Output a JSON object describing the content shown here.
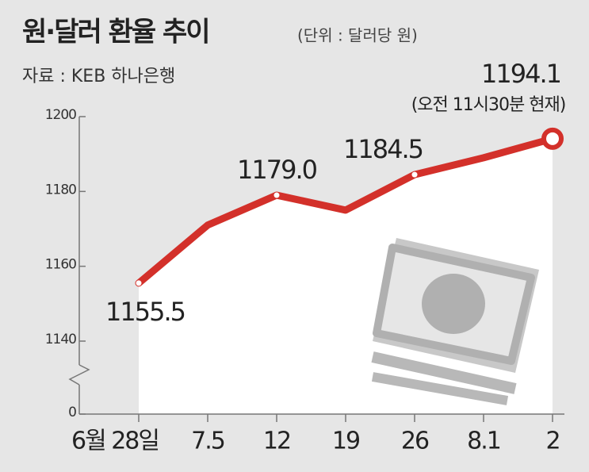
{
  "chart_data": {
    "type": "line",
    "title": "원·달러 환율 추이",
    "subtitle": "(단위 : 달러당 원)",
    "source": "자료 : KEB 하나은행",
    "annotation": "(오전 11시30분 현재)",
    "categories": [
      "6월 28일",
      "7.5",
      "12",
      "19",
      "26",
      "8.1",
      "2"
    ],
    "values": [
      1155.5,
      1171,
      1179.0,
      1175,
      1184.5,
      1189,
      1194.1
    ],
    "value_labels": [
      "1155.5",
      null,
      "1179.0",
      null,
      "1184.5",
      null,
      "1194.1"
    ],
    "color": "#d3302a",
    "ylim": [
      1140,
      1200
    ],
    "yticks": [
      0,
      1140,
      1160,
      1180,
      1200
    ],
    "axis_break": true
  }
}
